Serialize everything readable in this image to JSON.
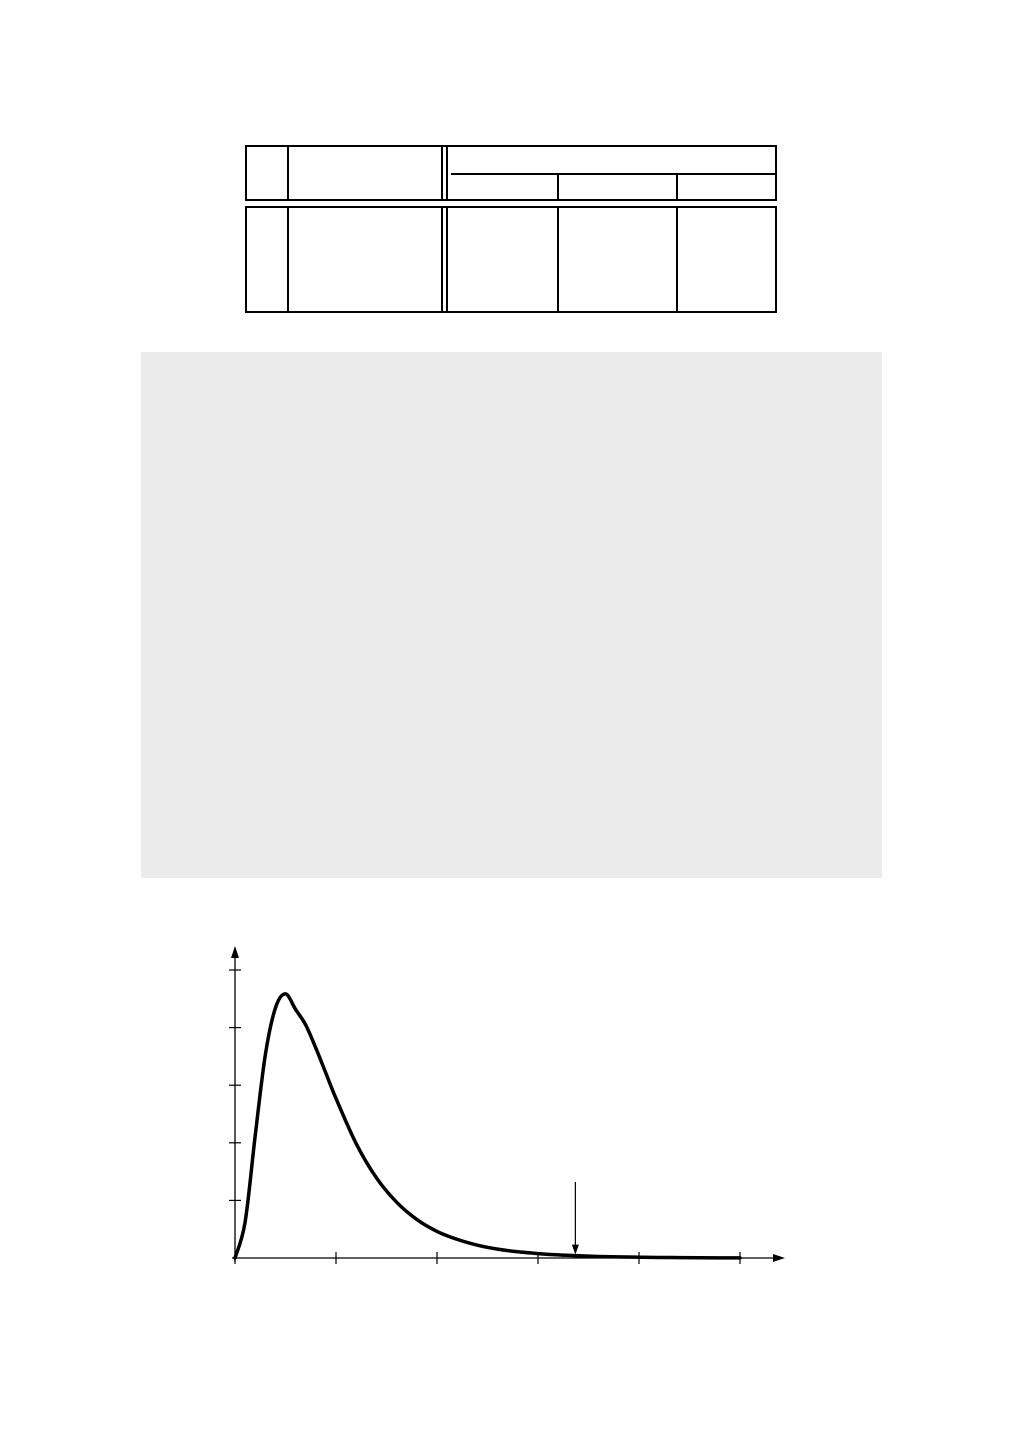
{
  "colors": {
    "ink": "#000000",
    "panel_background": "#ebebeb",
    "tail_fill": "#c8c8c8"
  },
  "table": {
    "header_rows": 2,
    "body_rows": 1,
    "columns": 6,
    "cells_text": []
  },
  "chart_data": {
    "type": "area",
    "title": "",
    "xlabel": "",
    "ylabel": "",
    "x_ticks_count": 6,
    "y_ticks_count": 5,
    "series": [
      {
        "x": [
          0,
          0.1,
          0.2,
          0.3,
          0.4,
          0.5,
          0.6,
          0.7,
          0.8,
          0.9,
          1.0,
          1.2,
          1.4,
          1.6,
          1.8,
          2.0,
          2.2,
          2.4,
          2.6,
          2.8,
          3.0,
          3.2,
          3.4,
          3.6,
          3.8,
          4.0,
          4.2,
          4.4,
          4.6,
          4.8,
          5.0
        ],
        "y": [
          0,
          0.81,
          2.76,
          4.58,
          5.64,
          5.96,
          5.61,
          5.26,
          4.74,
          4.17,
          3.6,
          2.58,
          1.81,
          1.26,
          0.87,
          0.6,
          0.42,
          0.29,
          0.2,
          0.14,
          0.1,
          0.07,
          0.05,
          0.035,
          0.025,
          0.018,
          0.012,
          0.009,
          0.006,
          0.004,
          0.003
        ]
      }
    ],
    "shaded_tail_start_x": 3.37,
    "annotation_arrow_x": 3.37,
    "grid": false,
    "legend": "none"
  }
}
